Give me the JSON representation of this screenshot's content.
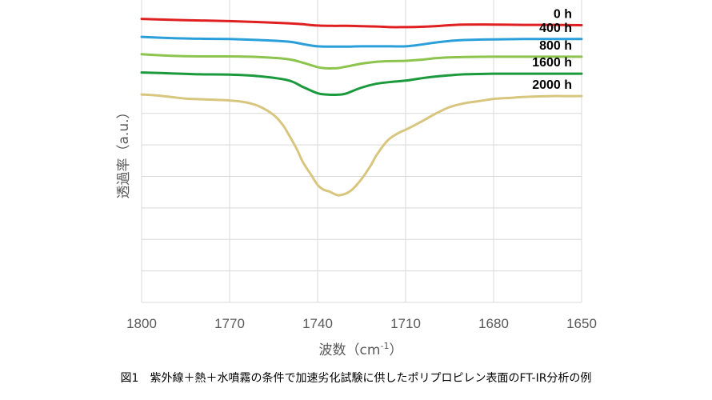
{
  "chart_data": {
    "type": "line",
    "title": "",
    "xlabel": "波数（cm",
    "xlabel_sup": "-1",
    "xlabel_close": "）",
    "ylabel": "透過率（a.u.）",
    "x_reversed": true,
    "xlim": [
      1800,
      1650
    ],
    "ylim": [
      0,
      9.6
    ],
    "xticks": [
      1800,
      1770,
      1740,
      1710,
      1680,
      1650
    ],
    "xtick_labels": [
      "1800",
      "1770",
      "1740",
      "1710",
      "1680",
      "1650"
    ],
    "yticks": [
      0,
      1,
      2,
      3,
      4,
      5,
      6
    ],
    "grid": true,
    "series": [
      {
        "name": "0 h",
        "color": "#e02020",
        "x": [
          1800,
          1790,
          1780,
          1770,
          1760,
          1750,
          1745,
          1740,
          1735,
          1730,
          1725,
          1720,
          1715,
          1710,
          1705,
          1700,
          1695,
          1690,
          1680,
          1670,
          1660,
          1650
        ],
        "y": [
          9.0,
          8.97,
          8.95,
          8.93,
          8.9,
          8.86,
          8.83,
          8.79,
          8.78,
          8.78,
          8.77,
          8.76,
          8.74,
          8.74,
          8.75,
          8.77,
          8.8,
          8.82,
          8.82,
          8.81,
          8.81,
          8.8
        ]
      },
      {
        "name": "400 h",
        "color": "#2b9fd9",
        "x": [
          1800,
          1790,
          1780,
          1770,
          1760,
          1750,
          1745,
          1740,
          1735,
          1730,
          1725,
          1720,
          1715,
          1710,
          1705,
          1700,
          1695,
          1690,
          1680,
          1670,
          1660,
          1650
        ],
        "y": [
          8.43,
          8.39,
          8.37,
          8.36,
          8.33,
          8.28,
          8.2,
          8.13,
          8.12,
          8.12,
          8.13,
          8.13,
          8.13,
          8.13,
          8.18,
          8.25,
          8.3,
          8.33,
          8.35,
          8.36,
          8.36,
          8.36
        ]
      },
      {
        "name": "800 h",
        "color": "#8cc44e",
        "x": [
          1800,
          1790,
          1780,
          1770,
          1760,
          1750,
          1745,
          1740,
          1737,
          1735,
          1733,
          1730,
          1725,
          1720,
          1715,
          1710,
          1705,
          1700,
          1695,
          1690,
          1680,
          1670,
          1660,
          1650
        ],
        "y": [
          7.88,
          7.83,
          7.81,
          7.81,
          7.79,
          7.72,
          7.61,
          7.47,
          7.43,
          7.43,
          7.44,
          7.49,
          7.58,
          7.64,
          7.66,
          7.67,
          7.7,
          7.75,
          7.78,
          7.79,
          7.8,
          7.8,
          7.8,
          7.8
        ]
      },
      {
        "name": "1600 h",
        "color": "#1a9a3c",
        "x": [
          1800,
          1790,
          1780,
          1770,
          1760,
          1750,
          1745,
          1740,
          1737,
          1735,
          1732,
          1730,
          1725,
          1720,
          1715,
          1710,
          1705,
          1700,
          1695,
          1690,
          1680,
          1670,
          1660,
          1650
        ],
        "y": [
          7.3,
          7.27,
          7.24,
          7.23,
          7.18,
          7.05,
          6.84,
          6.64,
          6.6,
          6.59,
          6.6,
          6.64,
          6.82,
          6.94,
          7.0,
          7.04,
          7.11,
          7.17,
          7.21,
          7.24,
          7.26,
          7.26,
          7.26,
          7.26
        ]
      },
      {
        "name": "2000 h",
        "color": "#d8c67f",
        "x": [
          1800,
          1795,
          1790,
          1785,
          1780,
          1775,
          1770,
          1765,
          1760,
          1755,
          1752,
          1750,
          1747,
          1745,
          1742,
          1740,
          1738,
          1736,
          1734,
          1733,
          1732,
          1730,
          1728,
          1725,
          1722,
          1720,
          1717,
          1715,
          1712,
          1710,
          1705,
          1700,
          1695,
          1690,
          1685,
          1680,
          1675,
          1670,
          1665,
          1660,
          1655,
          1650
        ],
        "y": [
          6.6,
          6.57,
          6.52,
          6.47,
          6.45,
          6.43,
          6.41,
          6.36,
          6.23,
          5.95,
          5.65,
          5.35,
          4.85,
          4.45,
          4.02,
          3.73,
          3.58,
          3.52,
          3.43,
          3.4,
          3.41,
          3.47,
          3.6,
          3.92,
          4.33,
          4.66,
          5.05,
          5.23,
          5.4,
          5.48,
          5.72,
          5.98,
          6.2,
          6.32,
          6.39,
          6.46,
          6.49,
          6.52,
          6.54,
          6.55,
          6.55,
          6.55
        ]
      }
    ],
    "caption": "図1　紫外線＋熱＋水噴霧の条件で加速劣化試験に供したポリプロピレン表面のFT-IR分析の例"
  }
}
